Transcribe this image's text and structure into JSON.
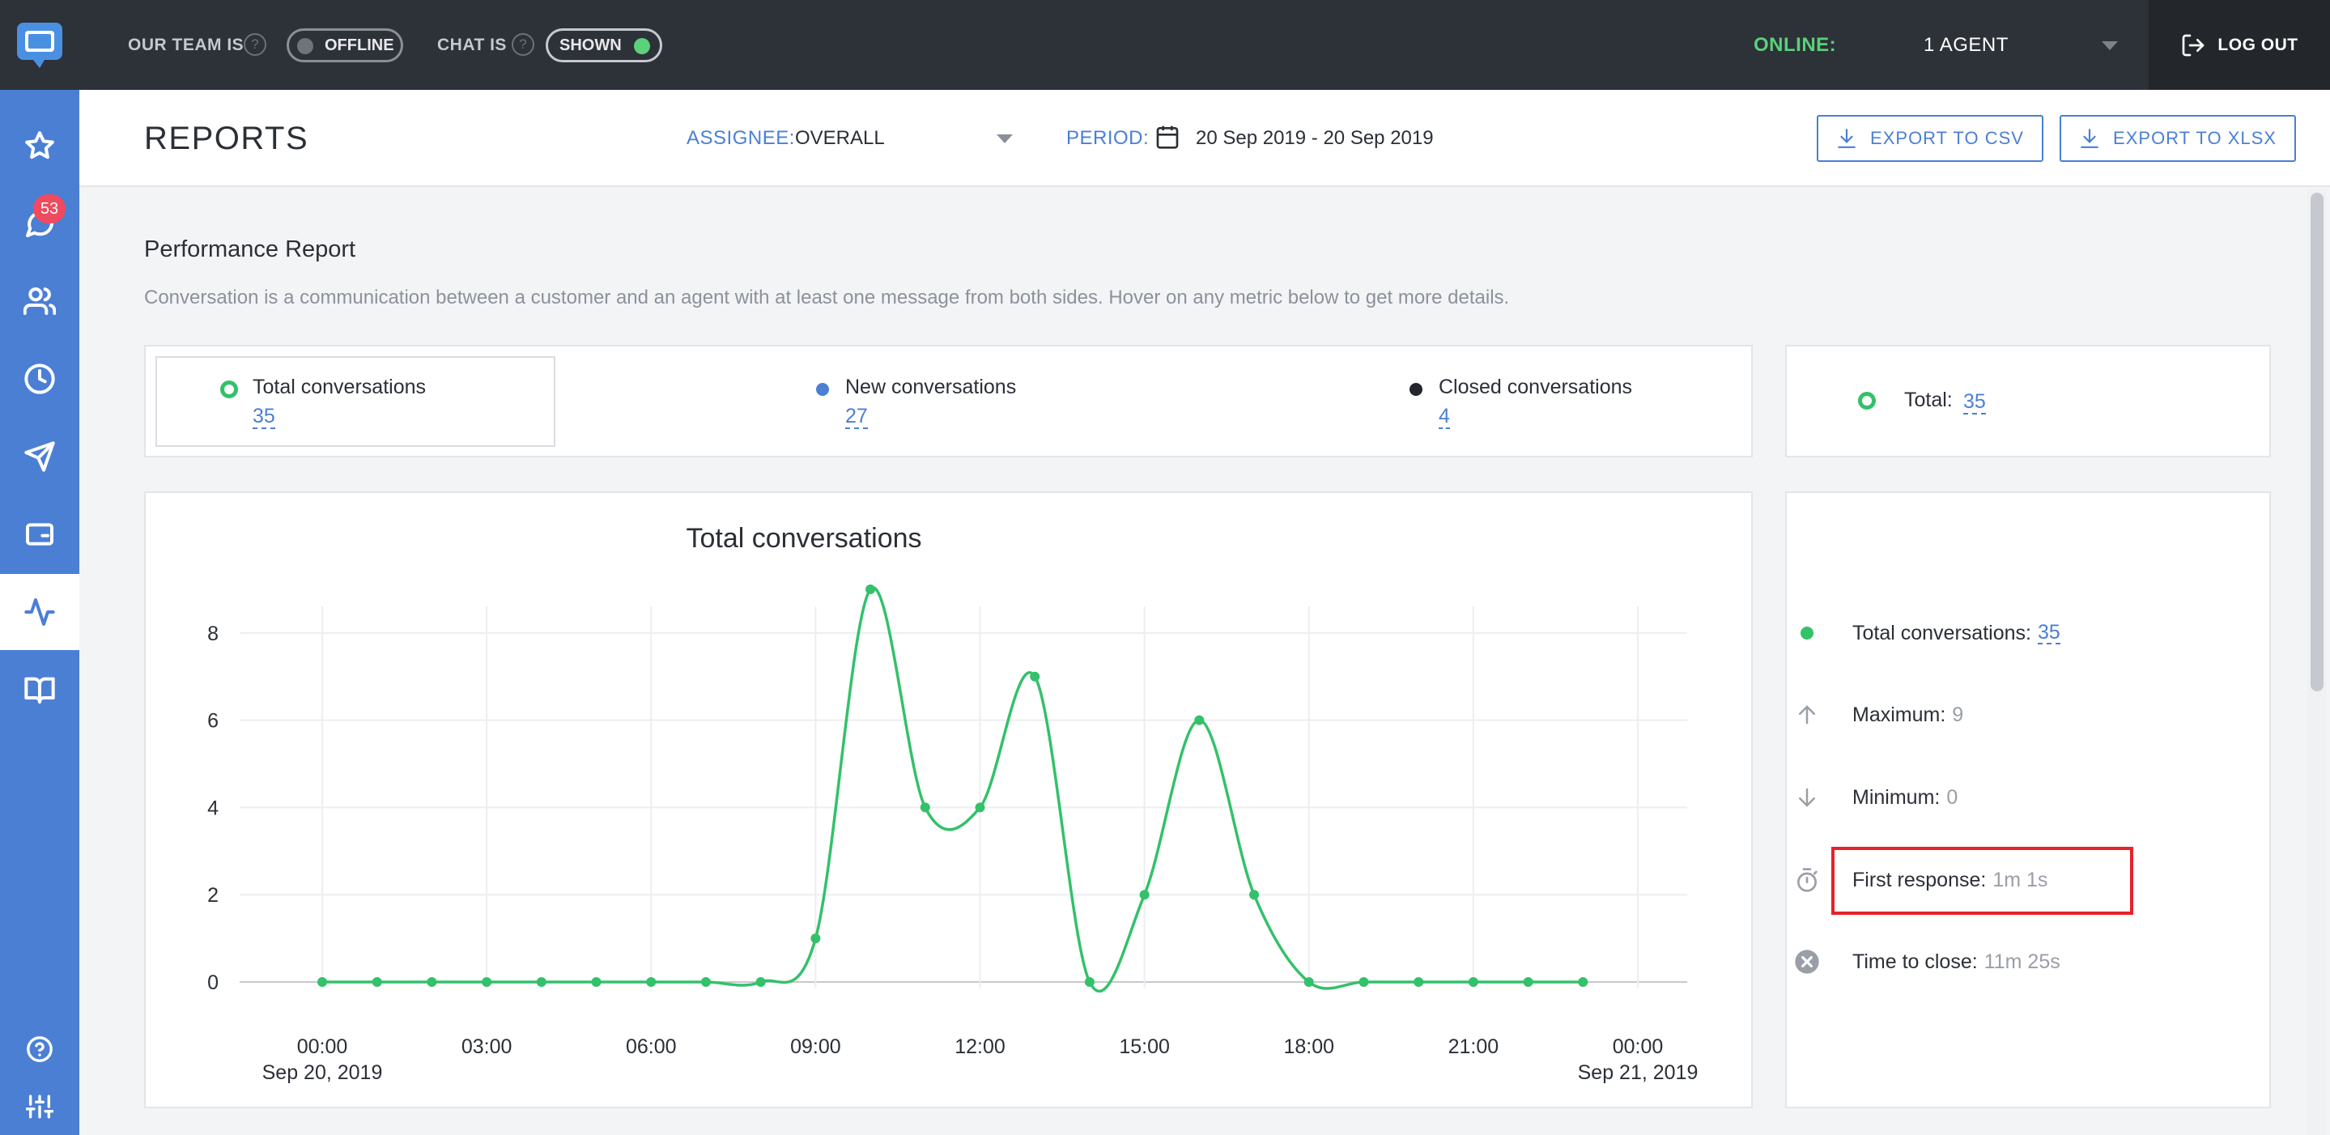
{
  "app": {
    "title": "Reports"
  },
  "topbar": {
    "team_label": "OUR TEAM IS",
    "team_toggle": "OFFLINE",
    "chat_label": "CHAT IS",
    "chat_toggle": "SHOWN",
    "online_label": "ONLINE:",
    "online_count": "1 AGENT",
    "logout": "LOG OUT"
  },
  "sidebar": {
    "items": [
      {
        "name": "favorites",
        "icon": "star-icon"
      },
      {
        "name": "chats",
        "icon": "chat-bubble-icon",
        "badge": "53"
      },
      {
        "name": "customers",
        "icon": "users-icon"
      },
      {
        "name": "history",
        "icon": "clock-icon"
      },
      {
        "name": "campaigns",
        "icon": "paper-plane-icon"
      },
      {
        "name": "widgets",
        "icon": "window-icon"
      },
      {
        "name": "reports",
        "icon": "activity-icon",
        "active": true
      },
      {
        "name": "knowledge-base",
        "icon": "book-icon"
      },
      {
        "name": "help",
        "icon": "help-icon"
      },
      {
        "name": "settings",
        "icon": "sliders-icon"
      }
    ]
  },
  "header": {
    "title": "REPORTS",
    "assignee_label": "ASSIGNEE:",
    "assignee_value": "OVERALL",
    "period_label": "PERIOD:",
    "period_value": "20 Sep 2019 - 20 Sep 2019",
    "export_csv": "EXPORT TO CSV",
    "export_xlsx": "EXPORT TO XLSX"
  },
  "report": {
    "title": "Performance Report",
    "description": "Conversation is a communication between a customer and an agent with at least one message from both sides. Hover on any metric below to get more details.",
    "metrics": [
      {
        "label": "Total conversations",
        "value": "35",
        "color": "#33c16a"
      },
      {
        "label": "New conversations",
        "value": "27",
        "color": "#4a7fd4"
      },
      {
        "label": "Closed conversations",
        "value": "4",
        "color": "#23262b"
      }
    ],
    "total_label": "Total:",
    "total_value": "35"
  },
  "stats": {
    "total_label": "Total conversations:",
    "total_value": "35",
    "max_label": "Maximum:",
    "max_value": "9",
    "min_label": "Minimum:",
    "min_value": "0",
    "first_response_label": "First response:",
    "first_response_value": "1m 1s",
    "time_to_close_label": "Time to close:",
    "time_to_close_value": "11m 25s"
  },
  "chart_data": {
    "type": "line",
    "title": "Total conversations",
    "x": [
      "00:00",
      "01:00",
      "02:00",
      "03:00",
      "04:00",
      "05:00",
      "06:00",
      "07:00",
      "08:00",
      "09:00",
      "10:00",
      "11:00",
      "12:00",
      "13:00",
      "14:00",
      "15:00",
      "16:00",
      "17:00",
      "18:00",
      "19:00",
      "20:00",
      "21:00",
      "22:00",
      "23:00"
    ],
    "series": [
      {
        "values": [
          0,
          0,
          0,
          0,
          0,
          0,
          0,
          0,
          0,
          1,
          9,
          4,
          4,
          7,
          0,
          2,
          6,
          2,
          0,
          0,
          0,
          0,
          0,
          0
        ],
        "color": "#33c16a"
      }
    ],
    "x_tick_labels": [
      {
        "hour": 0,
        "label": "00:00",
        "sub": "Sep 20, 2019"
      },
      {
        "hour": 3,
        "label": "03:00",
        "sub": ""
      },
      {
        "hour": 6,
        "label": "06:00",
        "sub": ""
      },
      {
        "hour": 9,
        "label": "09:00",
        "sub": ""
      },
      {
        "hour": 12,
        "label": "12:00",
        "sub": ""
      },
      {
        "hour": 15,
        "label": "15:00",
        "sub": ""
      },
      {
        "hour": 18,
        "label": "18:00",
        "sub": ""
      },
      {
        "hour": 21,
        "label": "21:00",
        "sub": ""
      },
      {
        "hour": 24,
        "label": "00:00",
        "sub": "Sep 21, 2019"
      }
    ],
    "y_ticks": [
      0,
      2,
      4,
      6,
      8
    ],
    "ylim": [
      0,
      9.5
    ],
    "xlim": [
      0,
      24
    ],
    "grid": true
  }
}
